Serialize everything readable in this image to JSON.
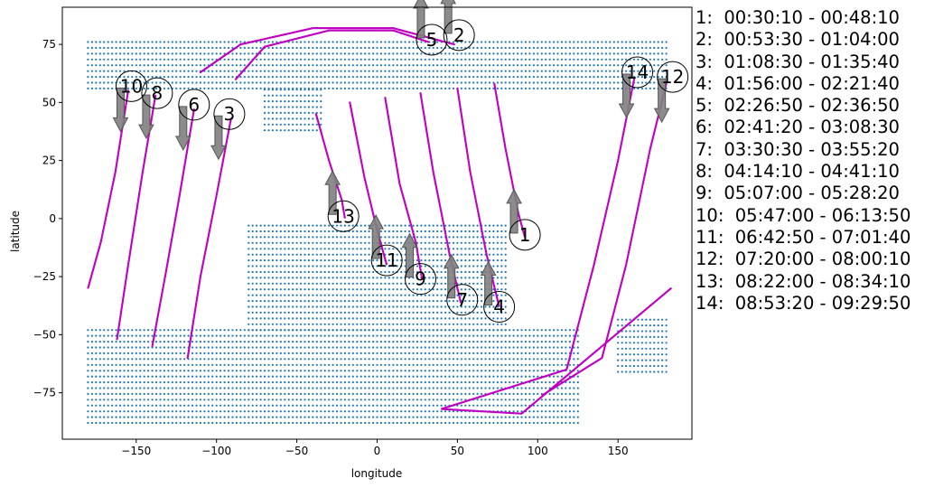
{
  "chart_data": {
    "type": "scatter",
    "title": "",
    "xlabel": "longitude",
    "ylabel": "latitude",
    "xlim": [
      -196,
      196
    ],
    "ylim": [
      -95,
      91
    ],
    "xticks": [
      -150,
      -100,
      -50,
      0,
      50,
      100,
      150
    ],
    "yticks": [
      75,
      50,
      25,
      0,
      -25,
      -50,
      -75
    ],
    "grid": false,
    "colors": {
      "land": "#1f77b4",
      "track": "#c000c0",
      "arrow": "#808080"
    },
    "land_regions": [
      {
        "lon": [
          -180,
          180
        ],
        "lat": [
          56,
          77
        ]
      },
      {
        "lon": [
          -70,
          -35
        ],
        "lat": [
          38,
          56
        ]
      },
      {
        "lon": [
          -80,
          80
        ],
        "lat": [
          -2,
          -48
        ]
      },
      {
        "lon": [
          -180,
          125
        ],
        "lat": [
          -48,
          -88
        ]
      },
      {
        "lon": [
          150,
          180
        ],
        "lat": [
          -43,
          -66
        ]
      }
    ],
    "tracks": [
      {
        "id": 1,
        "points": [
          [
            73,
            58
          ],
          [
            80,
            30
          ],
          [
            88,
            2
          ],
          [
            92,
            -8
          ]
        ]
      },
      {
        "id": 2,
        "points": [
          [
            -110,
            63
          ],
          [
            -85,
            75
          ],
          [
            -40,
            82
          ],
          [
            10,
            82
          ],
          [
            48,
            75
          ]
        ]
      },
      {
        "id": 3,
        "points": [
          [
            -91,
            43
          ],
          [
            -100,
            10
          ],
          [
            -110,
            -25
          ],
          [
            -118,
            -60
          ]
        ]
      },
      {
        "id": 4,
        "points": [
          [
            50,
            56
          ],
          [
            58,
            20
          ],
          [
            68,
            -15
          ],
          [
            76,
            -38
          ]
        ]
      },
      {
        "id": 5,
        "points": [
          [
            -88,
            60
          ],
          [
            -70,
            74
          ],
          [
            -30,
            81
          ],
          [
            10,
            81
          ],
          [
            32,
            76
          ]
        ]
      },
      {
        "id": 6,
        "points": [
          [
            -114,
            47
          ],
          [
            -123,
            10
          ],
          [
            -132,
            -25
          ],
          [
            -140,
            -55
          ]
        ]
      },
      {
        "id": 7,
        "points": [
          [
            27,
            54
          ],
          [
            35,
            20
          ],
          [
            45,
            -15
          ],
          [
            52,
            -36
          ]
        ]
      },
      {
        "id": 8,
        "points": [
          [
            -138,
            53
          ],
          [
            -146,
            20
          ],
          [
            -155,
            -20
          ],
          [
            -162,
            -52
          ]
        ]
      },
      {
        "id": 9,
        "points": [
          [
            5,
            52
          ],
          [
            14,
            15
          ],
          [
            24,
            -10
          ],
          [
            28,
            -26
          ]
        ]
      },
      {
        "id": 10,
        "points": [
          [
            -155,
            55
          ],
          [
            -163,
            20
          ],
          [
            -172,
            -10
          ],
          [
            -180,
            -30
          ]
        ]
      },
      {
        "id": 11,
        "points": [
          [
            -17,
            50
          ],
          [
            -8,
            18
          ],
          [
            0,
            -5
          ],
          [
            6,
            -20
          ]
        ]
      },
      {
        "id": 12,
        "points": [
          [
            180,
            58
          ],
          [
            170,
            30
          ],
          [
            155,
            -20
          ],
          [
            140,
            -60
          ],
          [
            103,
            -76
          ]
        ]
      },
      {
        "id": 13,
        "points": [
          [
            -38,
            45
          ],
          [
            -30,
            25
          ],
          [
            -22,
            8
          ],
          [
            -20,
            0
          ]
        ]
      },
      {
        "id": 14,
        "points": [
          [
            160,
            60
          ],
          [
            150,
            25
          ],
          [
            135,
            -20
          ],
          [
            118,
            -65
          ],
          [
            40,
            -82
          ],
          [
            90,
            -84
          ],
          [
            183,
            -30
          ]
        ]
      }
    ],
    "markers": [
      {
        "id": "1",
        "lon": 92,
        "lat": -7,
        "arrow": "up"
      },
      {
        "id": "2",
        "lon": 51,
        "lat": 79,
        "arrow": "up"
      },
      {
        "id": "3",
        "lon": -92,
        "lat": 45,
        "arrow": "down"
      },
      {
        "id": "4",
        "lon": 76,
        "lat": -38,
        "arrow": "up"
      },
      {
        "id": "5",
        "lon": 34,
        "lat": 77,
        "arrow": "up"
      },
      {
        "id": "6",
        "lon": -114,
        "lat": 49,
        "arrow": "down"
      },
      {
        "id": "7",
        "lon": 53,
        "lat": -35,
        "arrow": "up"
      },
      {
        "id": "8",
        "lon": -137,
        "lat": 54,
        "arrow": "down"
      },
      {
        "id": "9",
        "lon": 27,
        "lat": -26,
        "arrow": "up"
      },
      {
        "id": "10",
        "lon": -153,
        "lat": 57,
        "arrow": "down"
      },
      {
        "id": "11",
        "lon": 6,
        "lat": -18,
        "arrow": "up"
      },
      {
        "id": "12",
        "lon": 184,
        "lat": 61,
        "arrow": "down"
      },
      {
        "id": "13",
        "lon": -21,
        "lat": 1,
        "arrow": "up"
      },
      {
        "id": "14",
        "lon": 162,
        "lat": 63,
        "arrow": "down"
      }
    ],
    "legend": [
      "1:  00:30:10 - 00:48:10",
      "2:  00:53:30 - 01:04:00",
      "3:  01:08:30 - 01:35:40",
      "4:  01:56:00 - 02:21:40",
      "5:  02:26:50 - 02:36:50",
      "6:  02:41:20 - 03:08:30",
      "7:  03:30:30 - 03:55:20",
      "8:  04:14:10 - 04:41:10",
      "9:  05:07:00 - 05:28:20",
      "10:  05:47:00 - 06:13:50",
      "11:  06:42:50 - 07:01:40",
      "12:  07:20:00 - 08:00:10",
      "13:  08:22:00 - 08:34:10",
      "14:  08:53:20 - 09:29:50"
    ]
  }
}
